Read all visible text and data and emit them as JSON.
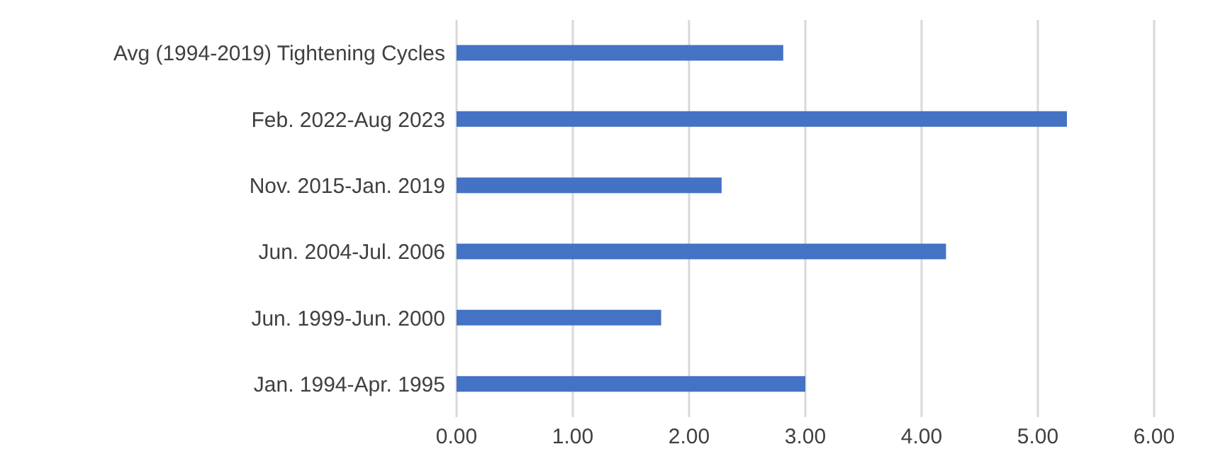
{
  "chart_data": {
    "type": "bar",
    "orientation": "horizontal",
    "categories": [
      "Avg (1994-2019) Tightening Cycles",
      "Feb. 2022-Aug 2023",
      "Nov. 2015-Jan. 2019",
      "Jun. 2004-Jul. 2006",
      "Jun. 1999-Jun. 2000",
      "Jan. 1994-Apr. 1995"
    ],
    "values": [
      2.81,
      5.25,
      2.28,
      4.21,
      1.76,
      3.0
    ],
    "color": "#4472c4",
    "xlim": [
      0,
      6
    ],
    "xticks": [
      {
        "value": 0,
        "label": "0.00"
      },
      {
        "value": 1,
        "label": "1.00"
      },
      {
        "value": 2,
        "label": "2.00"
      },
      {
        "value": 3,
        "label": "3.00"
      },
      {
        "value": 4,
        "label": "4.00"
      },
      {
        "value": 5,
        "label": "5.00"
      },
      {
        "value": 6,
        "label": "6.00"
      }
    ],
    "grid": "x"
  }
}
